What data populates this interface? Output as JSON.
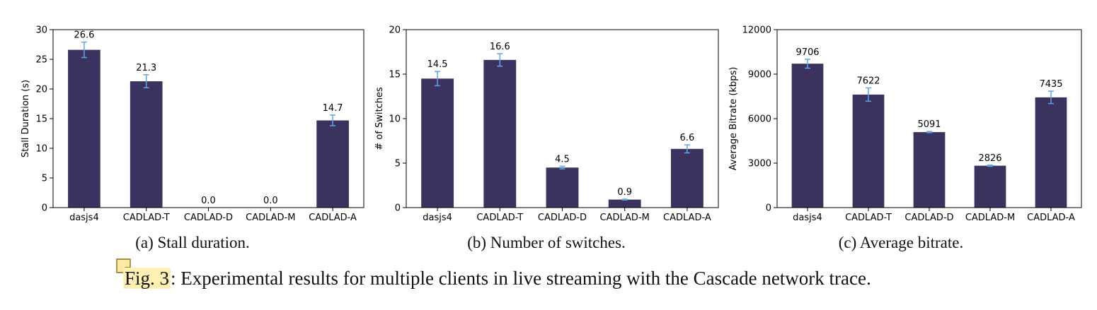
{
  "colors": {
    "bar": "#3b3260",
    "error_bar": "#5aa6e6",
    "highlight": "#fdf0b2"
  },
  "chart_data": [
    {
      "type": "bar",
      "categories": [
        "dasjs4",
        "CADLAD-T",
        "CADLAD-D",
        "CADLAD-M",
        "CADLAD-A"
      ],
      "values": [
        26.6,
        21.3,
        0.0,
        0.0,
        14.7
      ],
      "value_labels": [
        "26.6",
        "21.3",
        "0.0",
        "0.0",
        "14.7"
      ],
      "errors": [
        1.3,
        1.1,
        0,
        0,
        0.9
      ],
      "ylabel": "Stall Duration (s)",
      "ylim": [
        0,
        30
      ],
      "yticks": [
        0,
        5,
        10,
        15,
        20,
        25,
        30
      ],
      "ytick_labels": [
        "0",
        "5",
        "10",
        "15",
        "20",
        "25",
        "30"
      ],
      "grid": false
    },
    {
      "type": "bar",
      "categories": [
        "dasjs4",
        "CADLAD-T",
        "CADLAD-D",
        "CADLAD-M",
        "CADLAD-A"
      ],
      "values": [
        14.5,
        16.6,
        4.5,
        0.9,
        6.6
      ],
      "value_labels": [
        "14.5",
        "16.6",
        "4.5",
        "0.9",
        "6.6"
      ],
      "errors": [
        0.8,
        0.7,
        0.15,
        0.05,
        0.45
      ],
      "ylabel": "# of Switches",
      "ylim": [
        0,
        20
      ],
      "yticks": [
        0,
        5,
        10,
        15,
        20
      ],
      "ytick_labels": [
        "0",
        "5",
        "10",
        "15",
        "20"
      ],
      "grid": false
    },
    {
      "type": "bar",
      "categories": [
        "dasjs4",
        "CADLAD-T",
        "CADLAD-D",
        "CADLAD-M",
        "CADLAD-A"
      ],
      "values": [
        9706,
        7622,
        5091,
        2826,
        7435
      ],
      "value_labels": [
        "9706",
        "7622",
        "5091",
        "2826",
        "7435"
      ],
      "errors": [
        300,
        450,
        40,
        40,
        420
      ],
      "ylabel": "Average Bitrate (kbps)",
      "ylim": [
        0,
        12000
      ],
      "yticks": [
        0,
        3000,
        6000,
        9000,
        12000
      ],
      "ytick_labels": [
        "0",
        "3000",
        "6000",
        "9000",
        "12000"
      ],
      "grid": false
    }
  ],
  "captions": {
    "sub": [
      "(a) Stall duration.",
      "(b) Number of switches.",
      "(c) Average bitrate."
    ],
    "fig_label": "Fig. 3",
    "main_text": ": Experimental results for multiple clients in live streaming with the Cascade network trace."
  },
  "note_icon": "sticky-note-icon"
}
